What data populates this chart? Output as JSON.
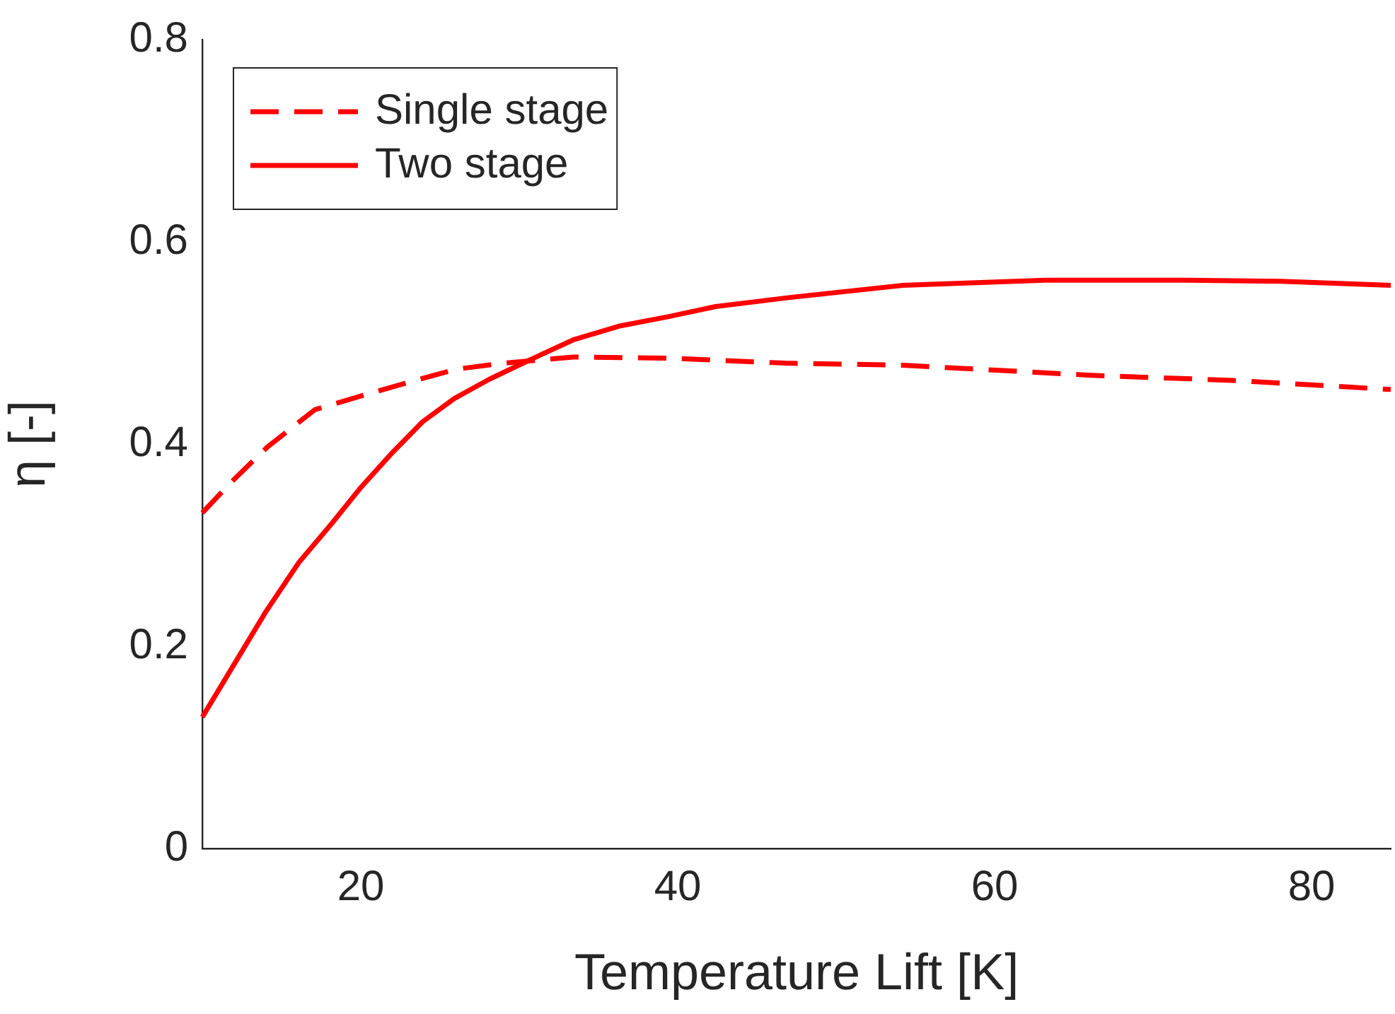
{
  "chart_data": {
    "type": "line",
    "xlabel": "Temperature Lift [K]",
    "ylabel": "η [-]",
    "xlim": [
      10,
      85
    ],
    "xticks": [
      20,
      40,
      60,
      80
    ],
    "ylim": [
      0,
      0.8
    ],
    "yticks": [
      0,
      0.2,
      0.4,
      0.6,
      0.8
    ],
    "grid": false,
    "legend": "top left",
    "marker": "none",
    "series": [
      {
        "name": "Single stage",
        "color": "#ff0000",
        "line_style": "dashed",
        "x": [
          10,
          11.8,
          14.1,
          17.1,
          20.1,
          23,
          26,
          29,
          33.4,
          39.4,
          46.8,
          54.2,
          66.1,
          75,
          85
        ],
        "values": [
          0.332,
          0.362,
          0.397,
          0.434,
          0.448,
          0.461,
          0.474,
          0.48,
          0.486,
          0.485,
          0.48,
          0.478,
          0.468,
          0.463,
          0.454
        ]
      },
      {
        "name": "Two stage",
        "color": "#ff0000",
        "line_style": "solid",
        "x": [
          10,
          14,
          16.1,
          18.2,
          20,
          21.9,
          23.9,
          25.9,
          28.1,
          30.5,
          33.4,
          36.4,
          39.4,
          42.4,
          47.1,
          54.2,
          63.2,
          72.1,
          78,
          85
        ],
        "values": [
          0.13,
          0.234,
          0.283,
          0.322,
          0.357,
          0.39,
          0.422,
          0.445,
          0.464,
          0.482,
          0.503,
          0.517,
          0.526,
          0.536,
          0.545,
          0.557,
          0.562,
          0.562,
          0.561,
          0.557
        ]
      }
    ]
  }
}
